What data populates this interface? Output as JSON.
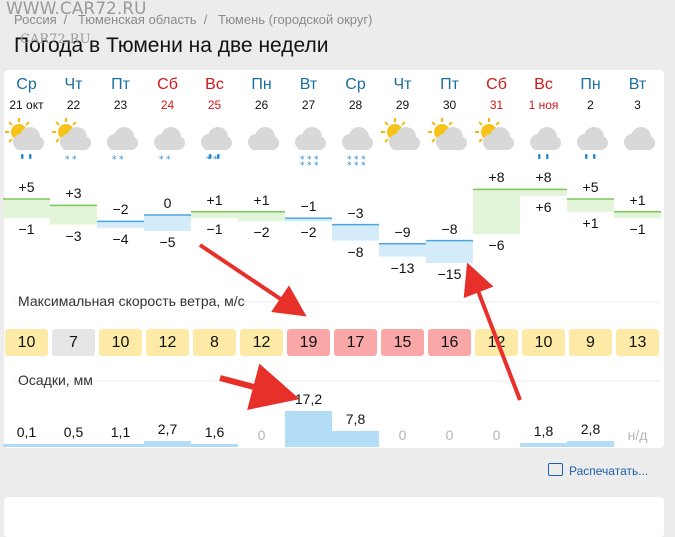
{
  "watermark": {
    "top": "WWW.CAR72.RU",
    "bottom": "CAR72.RU"
  },
  "breadcrumbs": [
    "Россия",
    "Тюменская область",
    "Тюмень (городской округ)"
  ],
  "title": "Погода в Тюмени на две недели",
  "days": [
    {
      "day": "Ср",
      "date": "21 окт",
      "weekend": false,
      "icon": "sun-cloud-rain-icon",
      "max": "+5",
      "min": "−1",
      "precip": "0,1",
      "wind": "10",
      "wind_level": "yellow"
    },
    {
      "day": "Чт",
      "date": "22",
      "weekend": false,
      "icon": "sun-cloud-snow-icon",
      "max": "+3",
      "min": "−3",
      "precip": "0,5",
      "wind": "7",
      "wind_level": "gray"
    },
    {
      "day": "Пт",
      "date": "23",
      "weekend": false,
      "icon": "cloud-snow-icon",
      "max": "−2",
      "min": "−4",
      "precip": "1,1",
      "wind": "10",
      "wind_level": "yellow"
    },
    {
      "day": "Сб",
      "date": "24",
      "weekend": true,
      "icon": "cloud-snow-icon",
      "max": "0",
      "min": "−5",
      "precip": "2,7",
      "wind": "12",
      "wind_level": "yellow"
    },
    {
      "day": "Вс",
      "date": "25",
      "weekend": true,
      "icon": "cloud-rain-snow-icon",
      "max": "+1",
      "min": "−1",
      "precip": "1,6",
      "wind": "8",
      "wind_level": "yellow"
    },
    {
      "day": "Пн",
      "date": "26",
      "weekend": false,
      "icon": "cloud-icon",
      "max": "+1",
      "min": "−2",
      "precip": "0",
      "wind": "12",
      "wind_level": "yellow"
    },
    {
      "day": "Вт",
      "date": "27",
      "weekend": false,
      "icon": "cloud-heavy-snow-icon",
      "max": "−1",
      "min": "−2",
      "precip": "17,2",
      "wind": "19",
      "wind_level": "red"
    },
    {
      "day": "Ср",
      "date": "28",
      "weekend": false,
      "icon": "cloud-heavy-snow-icon",
      "max": "−3",
      "min": "−8",
      "precip": "7,8",
      "wind": "17",
      "wind_level": "red"
    },
    {
      "day": "Чт",
      "date": "29",
      "weekend": false,
      "icon": "sun-cloud-icon",
      "max": "−9",
      "min": "−13",
      "precip": "0",
      "wind": "15",
      "wind_level": "red"
    },
    {
      "day": "Пт",
      "date": "30",
      "weekend": false,
      "icon": "sun-cloud-icon",
      "max": "−8",
      "min": "−15",
      "precip": "0",
      "wind": "16",
      "wind_level": "red"
    },
    {
      "day": "Сб",
      "date": "31",
      "weekend": true,
      "icon": "sun-cloud-icon",
      "max": "+8",
      "min": "−6",
      "precip": "0",
      "wind": "12",
      "wind_level": "yellow"
    },
    {
      "day": "Вс",
      "date": "1 ноя",
      "weekend": true,
      "icon": "cloud-rain-icon",
      "max": "+8",
      "min": "+6",
      "precip": "1,8",
      "wind": "10",
      "wind_level": "yellow"
    },
    {
      "day": "Пн",
      "date": "2",
      "weekend": false,
      "icon": "cloud-rain-icon",
      "max": "+5",
      "min": "+1",
      "precip": "2,8",
      "wind": "9",
      "wind_level": "yellow"
    },
    {
      "day": "Вт",
      "date": "3",
      "weekend": false,
      "icon": "cloud-icon",
      "max": "+1",
      "min": "−1",
      "precip": "н/д",
      "wind": "13",
      "wind_level": "yellow"
    }
  ],
  "wind_title": "Максимальная скорость ветра, м/с",
  "precip_title": "Осадки, мм",
  "print_label": "Распечатать...",
  "colors": {
    "weekend": "#d01818",
    "wind_yellow": "#fdeaa6",
    "wind_red": "#f9a7a7",
    "wind_gray": "#e6e6e6",
    "precip_bar": "#b3dcf7",
    "warm_fill": "#e2f5d9",
    "cold_fill": "#d4ecfa",
    "arrow": "#e8302a",
    "link": "#1a5fa8"
  }
}
